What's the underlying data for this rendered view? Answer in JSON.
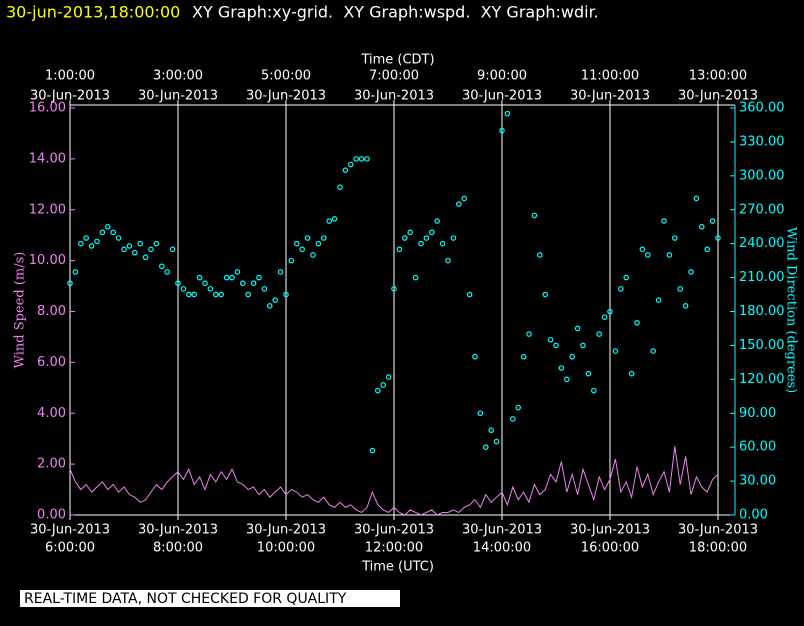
{
  "chart_data": {
    "type": "line",
    "title_date": "30-jun-2013,18:00:00",
    "title": "XY Graph:xy-grid.  XY Graph:wspd.  XY Graph:wdir.",
    "x_label": "Time (UTC)",
    "x2_label": "Time (CDT)",
    "y_label": "Wind Speed (m/s)",
    "y2_label": "Wind Direction (degrees)",
    "footer": "REAL-TIME DATA, NOT CHECKED FOR QUALITY",
    "xlim": [
      6,
      18
    ],
    "xticks": [
      {
        "value": 6,
        "label": "6:00:00",
        "date": "30-Jun-2013"
      },
      {
        "value": 8,
        "label": "8:00:00",
        "date": "30-Jun-2013"
      },
      {
        "value": 10,
        "label": "10:00:00",
        "date": "30-Jun-2013"
      },
      {
        "value": 12,
        "label": "12:00:00",
        "date": "30-Jun-2013"
      },
      {
        "value": 14,
        "label": "14:00:00",
        "date": "30-Jun-2013"
      },
      {
        "value": 16,
        "label": "16:00:00",
        "date": "30-Jun-2013"
      },
      {
        "value": 18,
        "label": "18:00:00",
        "date": "30-Jun-2013"
      }
    ],
    "x2lim": [
      1,
      13
    ],
    "x2ticks": [
      {
        "value": 1,
        "label": "1:00:00",
        "date": "30-Jun-2013"
      },
      {
        "value": 3,
        "label": "3:00:00",
        "date": "30-Jun-2013"
      },
      {
        "value": 5,
        "label": "5:00:00",
        "date": "30-Jun-2013"
      },
      {
        "value": 7,
        "label": "7:00:00",
        "date": "30-Jun-2013"
      },
      {
        "value": 9,
        "label": "9:00:00",
        "date": "30-Jun-2013"
      },
      {
        "value": 11,
        "label": "11:00:00",
        "date": "30-Jun-2013"
      },
      {
        "value": 13,
        "label": "13:00:00",
        "date": "30-Jun-2013"
      }
    ],
    "ylim": [
      0,
      16
    ],
    "yticks": [
      {
        "value": 0,
        "label": "0.00"
      },
      {
        "value": 2,
        "label": "2.00"
      },
      {
        "value": 4,
        "label": "4.00"
      },
      {
        "value": 6,
        "label": "6.00"
      },
      {
        "value": 8,
        "label": "8.00"
      },
      {
        "value": 10,
        "label": "10.00"
      },
      {
        "value": 12,
        "label": "12.00"
      },
      {
        "value": 14,
        "label": "14.00"
      },
      {
        "value": 16,
        "label": "16.00"
      }
    ],
    "y2lim": [
      0,
      360
    ],
    "y2ticks": [
      {
        "value": 0,
        "label": "0.00"
      },
      {
        "value": 30,
        "label": "30.00"
      },
      {
        "value": 60,
        "label": "60.00"
      },
      {
        "value": 90,
        "label": "90.00"
      },
      {
        "value": 120,
        "label": "120.00"
      },
      {
        "value": 150,
        "label": "150.00"
      },
      {
        "value": 180,
        "label": "180.00"
      },
      {
        "value": 210,
        "label": "210.00"
      },
      {
        "value": 240,
        "label": "240.00"
      },
      {
        "value": 270,
        "label": "270.00"
      },
      {
        "value": 300,
        "label": "300.00"
      },
      {
        "value": 330,
        "label": "330.00"
      },
      {
        "value": 360,
        "label": "360.00"
      }
    ],
    "grid": true,
    "x": [
      6.0,
      6.1,
      6.2,
      6.3,
      6.4,
      6.5,
      6.6,
      6.7,
      6.8,
      6.9,
      7.0,
      7.1,
      7.2,
      7.3,
      7.4,
      7.5,
      7.6,
      7.7,
      7.8,
      7.9,
      8.0,
      8.1,
      8.2,
      8.3,
      8.4,
      8.5,
      8.6,
      8.7,
      8.8,
      8.9,
      9.0,
      9.1,
      9.2,
      9.3,
      9.4,
      9.5,
      9.6,
      9.7,
      9.8,
      9.9,
      10.0,
      10.1,
      10.2,
      10.3,
      10.4,
      10.5,
      10.6,
      10.7,
      10.8,
      10.9,
      11.0,
      11.1,
      11.2,
      11.3,
      11.4,
      11.5,
      11.6,
      11.7,
      11.8,
      11.9,
      12.0,
      12.1,
      12.2,
      12.3,
      12.4,
      12.5,
      12.6,
      12.7,
      12.8,
      12.9,
      13.0,
      13.1,
      13.2,
      13.3,
      13.4,
      13.5,
      13.6,
      13.7,
      13.8,
      13.9,
      14.0,
      14.1,
      14.2,
      14.3,
      14.4,
      14.5,
      14.6,
      14.7,
      14.8,
      14.9,
      15.0,
      15.1,
      15.2,
      15.3,
      15.4,
      15.5,
      15.6,
      15.7,
      15.8,
      15.9,
      16.0,
      16.1,
      16.2,
      16.3,
      16.4,
      16.5,
      16.6,
      16.7,
      16.8,
      16.9,
      17.0,
      17.1,
      17.2,
      17.3,
      17.4,
      17.5,
      17.6,
      17.7,
      17.8,
      17.9,
      18.0
    ],
    "series": [
      {
        "name": "wspd",
        "type": "line",
        "color": "#ee82ee",
        "values": [
          1.8,
          1.3,
          1.0,
          1.2,
          0.9,
          1.1,
          1.3,
          1.0,
          1.2,
          0.9,
          1.1,
          0.8,
          0.7,
          0.5,
          0.6,
          0.9,
          1.2,
          1.0,
          1.3,
          1.5,
          1.7,
          1.4,
          1.8,
          1.2,
          1.5,
          1.0,
          1.6,
          1.3,
          1.7,
          1.4,
          1.8,
          1.3,
          1.2,
          1.0,
          1.1,
          0.8,
          1.0,
          0.7,
          0.9,
          1.1,
          0.8,
          1.0,
          0.9,
          0.7,
          0.8,
          0.6,
          0.5,
          0.7,
          0.4,
          0.3,
          0.5,
          0.3,
          0.4,
          0.2,
          0.1,
          0.3,
          0.9,
          0.4,
          0.2,
          0.1,
          0.3,
          0.1,
          0.0,
          0.2,
          0.1,
          0.0,
          0.1,
          0.2,
          0.0,
          0.1,
          0.1,
          0.2,
          0.1,
          0.3,
          0.4,
          0.6,
          0.3,
          0.8,
          0.5,
          0.7,
          0.9,
          0.4,
          1.1,
          0.6,
          0.9,
          0.5,
          1.2,
          0.8,
          1.0,
          1.6,
          1.3,
          2.1,
          0.9,
          1.6,
          0.8,
          1.8,
          1.2,
          0.6,
          1.5,
          1.0,
          1.4,
          2.2,
          0.9,
          1.3,
          0.7,
          1.9,
          1.1,
          1.6,
          0.8,
          1.3,
          1.7,
          0.9,
          2.7,
          1.2,
          2.3,
          0.8,
          1.5,
          1.1,
          0.9,
          1.4,
          1.6
        ]
      },
      {
        "name": "wdir",
        "type": "scatter",
        "axis": "y2",
        "color": "#00ffff",
        "values": [
          205,
          215,
          240,
          245,
          238,
          242,
          250,
          255,
          250,
          245,
          235,
          238,
          232,
          240,
          228,
          235,
          240,
          220,
          215,
          235,
          205,
          200,
          195,
          195,
          210,
          205,
          200,
          195,
          195,
          210,
          210,
          215,
          205,
          195,
          205,
          210,
          200,
          185,
          190,
          215,
          195,
          225,
          240,
          235,
          245,
          230,
          240,
          245,
          260,
          262,
          290,
          305,
          310,
          315,
          315,
          315,
          57,
          110,
          115,
          122,
          200,
          235,
          245,
          250,
          210,
          240,
          245,
          250,
          260,
          240,
          225,
          245,
          275,
          280,
          195,
          140,
          90,
          60,
          75,
          65,
          340,
          355,
          85,
          95,
          140,
          160,
          265,
          230,
          195,
          155,
          150,
          130,
          120,
          140,
          165,
          150,
          125,
          110,
          160,
          175,
          180,
          145,
          200,
          210,
          125,
          170,
          235,
          230,
          145,
          190,
          260,
          230,
          245,
          200,
          185,
          215,
          280,
          255,
          235,
          260,
          245
        ]
      }
    ]
  }
}
